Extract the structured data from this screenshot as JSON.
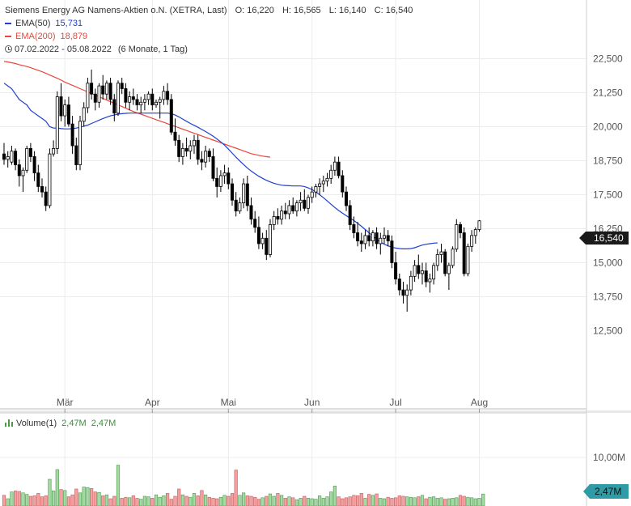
{
  "header": {
    "instrument": "Siemens Energy AG Namens-Aktien o.N. (XETRA, Last)",
    "ohlc": [
      {
        "label": "O:",
        "value": "16,220"
      },
      {
        "label": "H:",
        "value": "16,565"
      },
      {
        "label": "L:",
        "value": "16,140"
      },
      {
        "label": "C:",
        "value": "16,540"
      }
    ],
    "ema50": {
      "label": "EMA(50)",
      "value": "15,731",
      "color": "#1f3fcf"
    },
    "ema200": {
      "label": "EMA(200)",
      "value": "18,879",
      "color": "#e8473a"
    },
    "range": {
      "dates": "07.02.2022 - 05.08.2022",
      "period": "(6 Monate, 1 Tag)"
    }
  },
  "price_badge": "16,540",
  "volume_legend": {
    "label": "Volume(1)",
    "value1": "2,47M",
    "value2": "2,47M"
  },
  "volume_badge": "2,47M",
  "chart_data": [
    {
      "type": "candlestick",
      "xlabel": "",
      "ylabel": "",
      "ylim": [
        12500,
        23000
      ],
      "y_ticks": [
        "22,500",
        "21,250",
        "20,000",
        "18,750",
        "17,500",
        "16,250",
        "15,000",
        "13,750",
        "12,500"
      ],
      "y_tick_values": [
        22.5,
        21.25,
        20.0,
        18.75,
        17.5,
        16.25,
        15.0,
        13.75,
        12.5
      ],
      "x_ticks": [
        {
          "label": "Mär",
          "index": 16
        },
        {
          "label": "Apr",
          "index": 39
        },
        {
          "label": "Mai",
          "index": 59
        },
        {
          "label": "Jun",
          "index": 81
        },
        {
          "label": "Jul",
          "index": 103
        },
        {
          "label": "Aug",
          "index": 125
        }
      ],
      "grid": true,
      "up_color": "#ffffff",
      "down_color": "#000000",
      "candles": [
        [
          19.0,
          19.4,
          18.6,
          18.8
        ],
        [
          18.8,
          19.1,
          18.5,
          18.9
        ],
        [
          18.7,
          19.3,
          18.6,
          19.1
        ],
        [
          19.1,
          19.2,
          18.4,
          18.6
        ],
        [
          18.6,
          18.8,
          17.8,
          18.2
        ],
        [
          18.2,
          18.5,
          17.6,
          18.4
        ],
        [
          18.4,
          19.3,
          18.3,
          19.2
        ],
        [
          19.2,
          19.4,
          18.7,
          18.9
        ],
        [
          18.9,
          19.1,
          18.0,
          18.3
        ],
        [
          18.3,
          18.6,
          17.6,
          17.8
        ],
        [
          17.8,
          18.1,
          17.4,
          17.6
        ],
        [
          17.6,
          17.8,
          16.9,
          17.1
        ],
        [
          17.1,
          19.2,
          17.0,
          19.0
        ],
        [
          19.0,
          19.5,
          18.9,
          19.2
        ],
        [
          19.2,
          21.3,
          19.0,
          21.1
        ],
        [
          21.1,
          21.6,
          20.2,
          20.4
        ],
        [
          20.4,
          21.0,
          20.0,
          20.8
        ],
        [
          20.8,
          21.1,
          20.0,
          20.1
        ],
        [
          20.1,
          20.4,
          19.0,
          19.3
        ],
        [
          19.3,
          19.6,
          18.4,
          18.6
        ],
        [
          18.6,
          20.4,
          18.4,
          20.2
        ],
        [
          20.2,
          20.9,
          20.0,
          20.7
        ],
        [
          20.7,
          21.8,
          20.5,
          21.6
        ],
        [
          21.6,
          22.1,
          21.0,
          21.2
        ],
        [
          21.2,
          21.4,
          20.6,
          20.9
        ],
        [
          20.9,
          21.6,
          20.7,
          21.5
        ],
        [
          21.5,
          21.9,
          21.0,
          21.2
        ],
        [
          21.2,
          21.7,
          21.0,
          21.6
        ],
        [
          21.6,
          21.8,
          20.8,
          21.0
        ],
        [
          21.0,
          21.2,
          20.2,
          20.5
        ],
        [
          20.5,
          21.7,
          20.4,
          21.6
        ],
        [
          21.6,
          21.8,
          21.2,
          21.4
        ],
        [
          21.4,
          21.6,
          20.7,
          20.9
        ],
        [
          20.9,
          21.3,
          20.6,
          21.1
        ],
        [
          21.1,
          21.4,
          20.8,
          21.0
        ],
        [
          21.0,
          21.2,
          20.6,
          20.8
        ],
        [
          20.8,
          21.1,
          20.5,
          20.9
        ],
        [
          20.9,
          21.2,
          20.6,
          21.0
        ],
        [
          21.0,
          21.3,
          20.8,
          21.2
        ],
        [
          21.2,
          21.4,
          20.6,
          20.8
        ],
        [
          20.8,
          21.0,
          20.7,
          20.9
        ],
        [
          20.9,
          21.1,
          20.3,
          21.0
        ],
        [
          21.0,
          21.5,
          20.8,
          21.3
        ],
        [
          21.3,
          21.6,
          20.8,
          21.0
        ],
        [
          21.0,
          21.2,
          19.7,
          19.8
        ],
        [
          19.8,
          20.3,
          19.3,
          19.5
        ],
        [
          19.5,
          19.7,
          18.7,
          18.9
        ],
        [
          18.9,
          19.4,
          18.6,
          19.2
        ],
        [
          19.2,
          19.6,
          18.9,
          19.1
        ],
        [
          19.1,
          19.5,
          18.8,
          19.3
        ],
        [
          19.3,
          19.7,
          19.0,
          19.5
        ],
        [
          19.5,
          19.7,
          18.6,
          18.8
        ],
        [
          18.8,
          19.1,
          18.4,
          18.7
        ],
        [
          18.7,
          19.3,
          18.5,
          19.1
        ],
        [
          19.1,
          19.2,
          18.7,
          18.9
        ],
        [
          18.9,
          19.2,
          18.0,
          18.1
        ],
        [
          18.1,
          18.5,
          17.4,
          17.8
        ],
        [
          17.8,
          18.4,
          17.6,
          18.2
        ],
        [
          18.2,
          18.6,
          17.9,
          18.3
        ],
        [
          18.3,
          18.5,
          17.7,
          17.9
        ],
        [
          17.9,
          18.1,
          17.1,
          17.3
        ],
        [
          17.3,
          17.6,
          16.7,
          16.9
        ],
        [
          16.9,
          17.4,
          16.8,
          17.2
        ],
        [
          17.2,
          18.1,
          17.0,
          17.9
        ],
        [
          17.9,
          18.2,
          16.9,
          17.1
        ],
        [
          17.1,
          17.4,
          16.4,
          16.6
        ],
        [
          16.6,
          16.9,
          16.1,
          16.3
        ],
        [
          16.3,
          16.7,
          15.5,
          15.7
        ],
        [
          15.7,
          16.1,
          15.5,
          15.9
        ],
        [
          15.9,
          16.2,
          15.1,
          15.3
        ],
        [
          15.3,
          16.6,
          15.2,
          16.4
        ],
        [
          16.4,
          16.9,
          16.2,
          16.7
        ],
        [
          16.7,
          17.0,
          16.4,
          16.6
        ],
        [
          16.6,
          17.1,
          16.4,
          16.9
        ],
        [
          16.9,
          17.2,
          16.6,
          16.8
        ],
        [
          16.8,
          17.3,
          16.6,
          17.1
        ],
        [
          17.1,
          17.4,
          16.8,
          16.9
        ],
        [
          16.9,
          17.3,
          16.7,
          17.2
        ],
        [
          17.2,
          17.6,
          16.9,
          17.3
        ],
        [
          17.3,
          17.7,
          16.9,
          17.0
        ],
        [
          17.0,
          17.5,
          16.8,
          17.4
        ],
        [
          17.4,
          17.8,
          17.2,
          17.6
        ],
        [
          17.6,
          17.9,
          17.4,
          17.8
        ],
        [
          17.8,
          18.1,
          17.5,
          17.9
        ],
        [
          17.9,
          18.2,
          17.6,
          18.0
        ],
        [
          18.0,
          18.3,
          17.8,
          18.1
        ],
        [
          18.1,
          18.6,
          17.9,
          18.4
        ],
        [
          18.4,
          18.9,
          18.2,
          18.7
        ],
        [
          18.7,
          18.9,
          18.1,
          18.2
        ],
        [
          18.2,
          18.4,
          17.4,
          17.6
        ],
        [
          17.6,
          17.8,
          16.9,
          17.1
        ],
        [
          17.1,
          17.3,
          16.2,
          16.4
        ],
        [
          16.4,
          16.7,
          15.9,
          16.1
        ],
        [
          16.1,
          16.5,
          15.6,
          15.8
        ],
        [
          15.8,
          16.1,
          15.4,
          15.7
        ],
        [
          15.7,
          16.2,
          15.5,
          16.0
        ],
        [
          16.0,
          16.3,
          15.6,
          15.8
        ],
        [
          15.8,
          16.2,
          15.6,
          16.1
        ],
        [
          16.1,
          16.3,
          15.5,
          15.7
        ],
        [
          15.7,
          16.1,
          15.3,
          15.9
        ],
        [
          15.9,
          16.3,
          15.7,
          16.0
        ],
        [
          16.0,
          16.2,
          15.6,
          15.8
        ],
        [
          15.8,
          16.0,
          14.8,
          15.0
        ],
        [
          15.0,
          15.4,
          14.2,
          14.4
        ],
        [
          14.4,
          14.6,
          13.8,
          14.0
        ],
        [
          14.0,
          14.3,
          13.5,
          13.8
        ],
        [
          13.8,
          14.2,
          13.2,
          14.0
        ],
        [
          14.0,
          14.7,
          13.8,
          14.5
        ],
        [
          14.5,
          15.1,
          14.3,
          14.9
        ],
        [
          14.9,
          15.3,
          14.4,
          14.6
        ],
        [
          14.6,
          15.0,
          14.2,
          14.7
        ],
        [
          14.7,
          15.0,
          14.1,
          14.3
        ],
        [
          14.3,
          14.6,
          13.9,
          14.4
        ],
        [
          14.4,
          15.0,
          14.2,
          14.9
        ],
        [
          14.9,
          15.5,
          14.7,
          15.3
        ],
        [
          15.3,
          15.7,
          15.0,
          15.4
        ],
        [
          15.4,
          15.5,
          14.5,
          14.6
        ],
        [
          14.6,
          15.0,
          14.0,
          14.9
        ],
        [
          14.9,
          15.6,
          14.8,
          15.5
        ],
        [
          15.5,
          16.6,
          15.4,
          16.4
        ],
        [
          16.4,
          16.5,
          15.9,
          16.1
        ],
        [
          16.1,
          16.3,
          14.5,
          14.6
        ],
        [
          14.6,
          15.7,
          14.5,
          15.6
        ],
        [
          15.6,
          16.2,
          15.4,
          16.0
        ],
        [
          16.0,
          16.3,
          15.7,
          16.22
        ],
        [
          16.22,
          16.565,
          16.14,
          16.54
        ]
      ],
      "ema50": [
        21.6,
        21.5,
        21.4,
        21.2,
        21.0,
        20.9,
        20.8,
        20.6,
        20.5,
        20.4,
        20.3,
        20.2,
        20.0,
        19.95,
        19.95,
        19.93,
        19.92,
        19.92,
        19.93,
        19.95,
        19.98,
        20.02,
        20.06,
        20.12,
        20.18,
        20.24,
        20.3,
        20.35,
        20.4,
        20.43,
        20.46,
        20.48,
        20.49,
        20.5,
        20.5,
        20.5,
        20.5,
        20.5,
        20.5,
        20.5,
        20.5,
        20.5,
        20.5,
        20.5,
        20.48,
        20.43,
        20.36,
        20.28,
        20.2,
        20.12,
        20.05,
        19.98,
        19.9,
        19.82,
        19.74,
        19.65,
        19.55,
        19.44,
        19.32,
        19.18,
        19.03,
        18.88,
        18.74,
        18.61,
        18.48,
        18.37,
        18.27,
        18.18,
        18.1,
        18.03,
        17.97,
        17.92,
        17.88,
        17.85,
        17.84,
        17.83,
        17.82,
        17.82,
        17.82,
        17.8,
        17.75,
        17.69,
        17.6,
        17.5,
        17.39,
        17.27,
        17.15,
        17.03,
        16.92,
        16.82,
        16.73,
        16.64,
        16.55,
        16.45,
        16.34,
        16.22,
        16.1,
        15.98,
        15.86,
        15.76,
        15.68,
        15.62,
        15.57,
        15.54,
        15.52,
        15.51,
        15.51,
        15.52,
        15.55,
        15.6,
        15.65,
        15.68,
        15.7,
        15.72,
        15.73
      ],
      "ema200": [
        22.4,
        22.38,
        22.35,
        22.32,
        22.28,
        22.25,
        22.21,
        22.17,
        22.12,
        22.07,
        22.02,
        21.96,
        21.9,
        21.84,
        21.78,
        21.71,
        21.64,
        21.58,
        21.52,
        21.46,
        21.4,
        21.34,
        21.28,
        21.22,
        21.16,
        21.1,
        21.04,
        20.98,
        20.92,
        20.86,
        20.8,
        20.74,
        20.68,
        20.62,
        20.56,
        20.51,
        20.46,
        20.41,
        20.36,
        20.31,
        20.26,
        20.21,
        20.16,
        20.11,
        20.06,
        20.01,
        19.96,
        19.91,
        19.86,
        19.81,
        19.76,
        19.71,
        19.66,
        19.61,
        19.56,
        19.51,
        19.46,
        19.41,
        19.36,
        19.31,
        19.26,
        19.21,
        19.16,
        19.11,
        19.06,
        19.01,
        18.98,
        18.95,
        18.92,
        18.9,
        18.88
      ]
    },
    {
      "type": "bar",
      "title": "Volume(1)",
      "ylim": [
        0,
        12000000
      ],
      "y_ticks": [
        "10,00M"
      ],
      "y_tick_values": [
        10000000
      ],
      "bar_colors": {
        "up": "#a6d9a6",
        "down": "#f2a0a0"
      },
      "values": [
        2.2,
        1.5,
        2.9,
        3.1,
        3.0,
        2.7,
        2.4,
        2.0,
        2.1,
        2.6,
        1.9,
        2.1,
        5.5,
        3.1,
        7.5,
        3.4,
        3.2,
        1.9,
        2.3,
        3.5,
        2.7,
        3.9,
        3.8,
        3.6,
        2.9,
        2.8,
        2.1,
        2.3,
        1.5,
        2.0,
        8.4,
        1.6,
        1.8,
        1.7,
        2.1,
        1.6,
        1.4,
        2.0,
        1.9,
        1.6,
        2.3,
        1.8,
        2.1,
        2.6,
        1.4,
        2.0,
        3.5,
        2.3,
        2.0,
        1.8,
        2.6,
        2.1,
        3.2,
        2.3,
        1.8,
        1.6,
        1.5,
        1.8,
        2.2,
        2.0,
        2.6,
        7.4,
        2.2,
        2.7,
        2.1,
        2.0,
        1.8,
        1.4,
        1.7,
        2.0,
        2.5,
        2.0,
        2.6,
        2.2,
        1.6,
        1.9,
        1.7,
        1.3,
        1.6,
        2.0,
        1.6,
        1.5,
        1.4,
        2.1,
        1.6,
        1.9,
        2.9,
        4.1,
        1.9,
        1.5,
        1.7,
        1.9,
        2.2,
        2.1,
        2.6,
        1.6,
        2.4,
        2.2,
        2.5,
        1.6,
        1.5,
        1.8,
        1.6,
        1.7,
        2.1,
        2.0,
        1.9,
        1.8,
        1.7,
        1.9,
        2.2,
        1.5,
        1.8,
        1.9,
        1.6,
        1.7,
        1.4,
        1.5,
        1.6,
        1.7,
        2.2,
        2.0,
        1.8,
        1.7,
        1.5,
        1.6,
        2.47
      ]
    }
  ]
}
